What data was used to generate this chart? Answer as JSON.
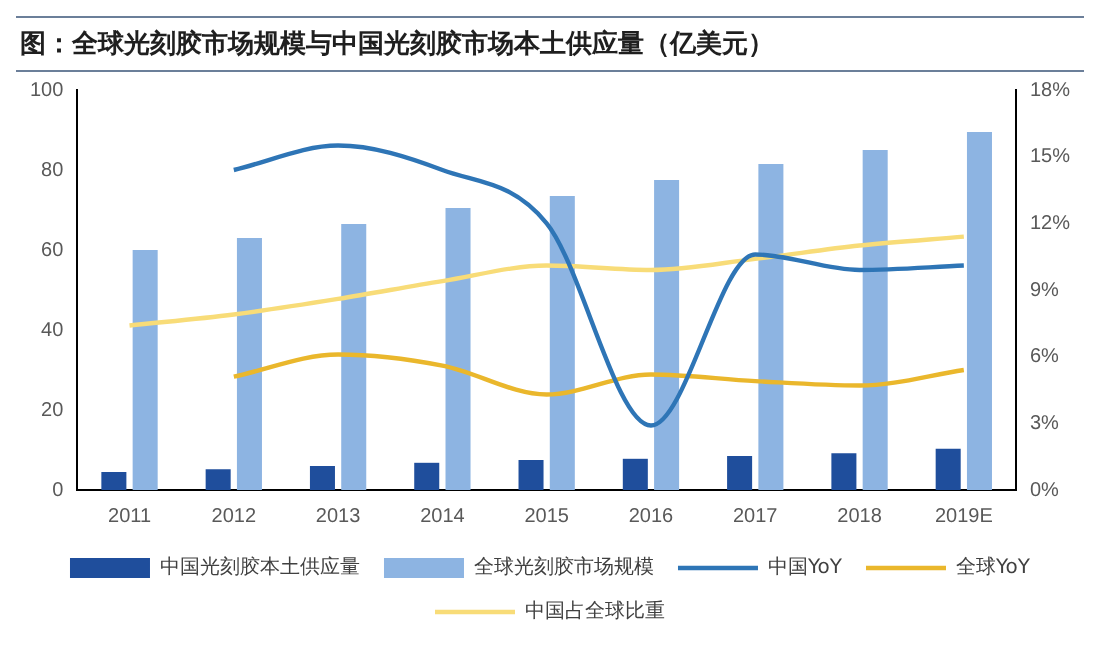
{
  "chart_data": {
    "type": "bar",
    "title": "图：全球光刻胶市场规模与中国光刻胶市场本土供应量（亿美元）",
    "categories": [
      "2011",
      "2012",
      "2013",
      "2014",
      "2015",
      "2016",
      "2017",
      "2018",
      "2019E"
    ],
    "series": [
      {
        "name": "中国光刻胶本土供应量",
        "color": "#1f4e9c",
        "values": [
          4.5,
          5.2,
          6.0,
          6.8,
          7.5,
          7.8,
          8.5,
          9.2,
          10.3
        ]
      },
      {
        "name": "全球光刻胶市场规模",
        "color": "#8db4e2",
        "values": [
          60,
          63,
          66.5,
          70.5,
          73.5,
          77.5,
          81.5,
          85,
          89.5
        ]
      },
      {
        "name": "中国YoY",
        "type": "line",
        "axis": "y2",
        "color": "#2e75b6",
        "values": [
          null,
          14.4,
          15.5,
          14.4,
          12.0,
          2.9,
          10.6,
          9.9,
          10.1
        ]
      },
      {
        "name": "全球YoY",
        "type": "line",
        "axis": "y2",
        "color": "#eab72c",
        "values": [
          null,
          5.1,
          6.1,
          5.6,
          4.3,
          5.2,
          4.9,
          4.7,
          5.4
        ]
      },
      {
        "name": "中国占全球比重",
        "type": "line",
        "axis": "y2",
        "color": "#f8dc78",
        "values": [
          7.4,
          7.9,
          8.6,
          9.4,
          10.1,
          9.9,
          10.4,
          11.0,
          11.4
        ]
      }
    ],
    "ylim": [
      0,
      100
    ],
    "yticks": [
      0,
      20,
      40,
      60,
      80,
      100
    ],
    "y2lim": [
      0,
      18
    ],
    "y2ticks": [
      {
        "value": 0,
        "label": "0%"
      },
      {
        "value": 3,
        "label": "3%"
      },
      {
        "value": 6,
        "label": "6%"
      },
      {
        "value": 9,
        "label": "9%"
      },
      {
        "value": 12,
        "label": "12%"
      },
      {
        "value": 15,
        "label": "15%"
      },
      {
        "value": 18,
        "label": "18%"
      }
    ],
    "grid": false,
    "legend": "bottom",
    "marker": "none"
  }
}
